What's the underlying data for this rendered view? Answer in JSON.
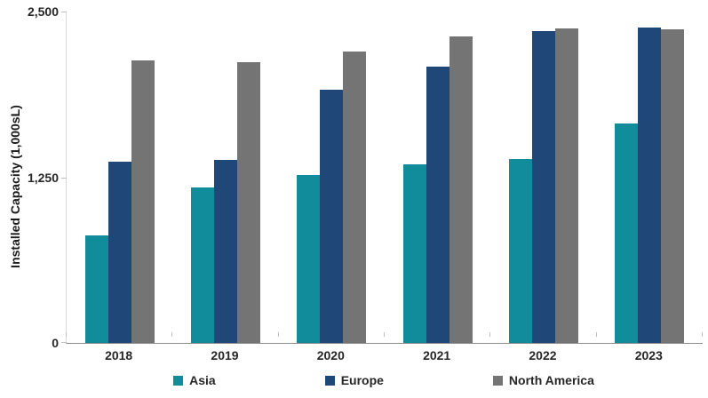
{
  "chart_data": {
    "type": "bar",
    "title": "",
    "xlabel": "",
    "ylabel": "Installed Capacity (1,000sL)",
    "categories": [
      "2018",
      "2019",
      "2020",
      "2021",
      "2022",
      "2023"
    ],
    "series": [
      {
        "name": "Asia",
        "color": "#118C9B",
        "values": [
          810,
          1170,
          1265,
          1350,
          1390,
          1655
        ]
      },
      {
        "name": "Europe",
        "color": "#1F4878",
        "values": [
          1370,
          1380,
          1910,
          2085,
          2355,
          2380
        ]
      },
      {
        "name": "North America",
        "color": "#747474",
        "values": [
          2130,
          2120,
          2200,
          2315,
          2370,
          2365
        ]
      }
    ],
    "ylim": [
      0,
      2500
    ],
    "yticks": [
      {
        "value": 0,
        "label": "0"
      },
      {
        "value": 1250,
        "label": "1,250"
      },
      {
        "value": 2500,
        "label": "2,500"
      }
    ],
    "grid": false,
    "legend_position": "bottom"
  },
  "colors": {
    "axis_line_light": "#d9d9d9",
    "axis_line_dark": "#8c8c8c",
    "tick_mark": "#bfbfbf",
    "text": "#262626"
  }
}
